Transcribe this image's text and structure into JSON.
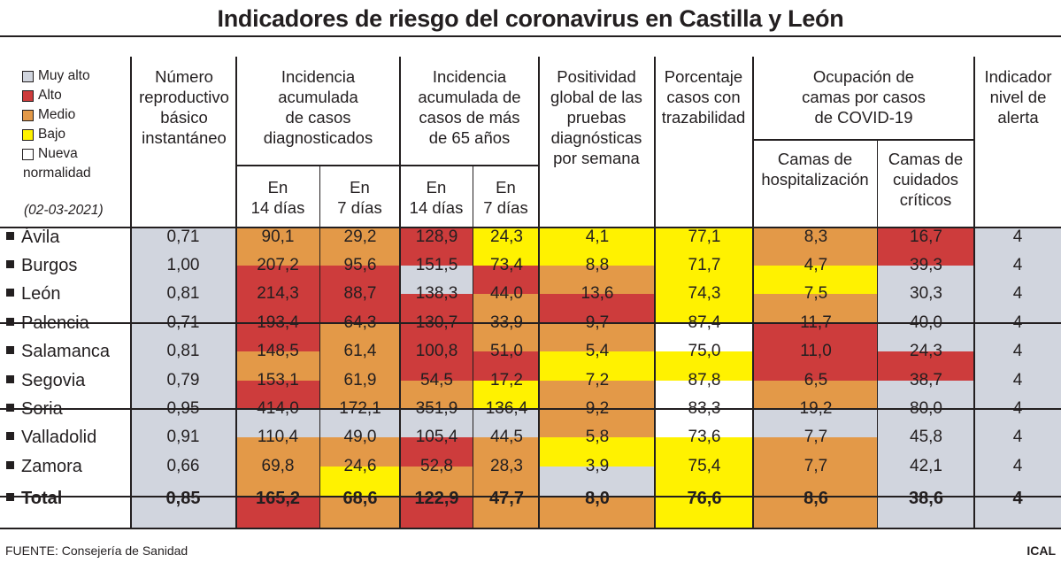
{
  "title": "Indicadores de riesgo del coronavirus en Castilla y León",
  "legend": {
    "items": [
      {
        "label": "Muy alto",
        "color": "#d1d5de"
      },
      {
        "label": "Alto",
        "color": "#cd3c3c"
      },
      {
        "label": "Medio",
        "color": "#e39948"
      },
      {
        "label": "Bajo",
        "color": "#fff200"
      },
      {
        "label": "Nueva",
        "color": "#ffffff"
      }
    ],
    "extra_line": "normalidad",
    "date": "(02-03-2021)"
  },
  "headers": {
    "reproductivo": [
      "Número",
      "reproductivo",
      "básico",
      "instantáneo"
    ],
    "incidencia": [
      "Incidencia",
      "acumulada",
      "de casos",
      "diagnosticados"
    ],
    "incidencia65": [
      "Incidencia",
      "acumulada de",
      "casos de más",
      "de 65 años"
    ],
    "positividad": [
      "Positividad",
      "global de las",
      "pruebas",
      "diagnósticas",
      "por semana"
    ],
    "trazabilidad": [
      "Porcentaje",
      "casos con",
      "trazabilidad"
    ],
    "ocupacion": [
      "Ocupación de",
      "camas por casos",
      "de COVID-19"
    ],
    "alerta": [
      "Indicador",
      "nivel de",
      "alerta"
    ],
    "sub_14": [
      "En",
      "14 días"
    ],
    "sub_7": [
      "En",
      "7 días"
    ],
    "sub_hosp": [
      "Camas de",
      "hospitalización"
    ],
    "sub_uci": [
      "Camas de",
      "cuidados",
      "críticos"
    ]
  },
  "chart_data": {
    "type": "table",
    "title": "Indicadores de riesgo del coronavirus en Castilla y León",
    "columns": [
      "Número reproductivo básico instantáneo",
      "Incidencia acumulada de casos diagnosticados - En 14 días",
      "Incidencia acumulada de casos diagnosticados - En 7 días",
      "Incidencia acumulada de casos de más de 65 años - En 14 días",
      "Incidencia acumulada de casos de más de 65 años - En 7 días",
      "Positividad global de las pruebas diagnósticas por semana",
      "Porcentaje casos con trazabilidad",
      "Ocupación de camas por casos de COVID-19 - Camas de hospitalización",
      "Ocupación de camas por casos de COVID-19 - Camas de cuidados críticos",
      "Indicador nivel de alerta"
    ],
    "level_colors": {
      "muy_alto": "#d1d5de",
      "alto": "#cd3c3c",
      "medio": "#e39948",
      "bajo": "#fff200",
      "nueva": "#ffffff"
    },
    "rows": [
      {
        "name": "Ávila",
        "values": [
          "0,71",
          "90,1",
          "29,2",
          "128,9",
          "24,3",
          "4,1",
          "77,1",
          "8,3",
          "16,7",
          "4"
        ],
        "levels": [
          "muy_alto",
          "medio",
          "medio",
          "alto",
          "bajo",
          "bajo",
          "bajo",
          "medio",
          "alto",
          "muy_alto"
        ]
      },
      {
        "name": "Burgos",
        "values": [
          "1,00",
          "207,2",
          "95,6",
          "151,5",
          "73,4",
          "8,8",
          "71,7",
          "4,7",
          "39,3",
          "4"
        ],
        "levels": [
          "muy_alto",
          "alto",
          "alto",
          "muy_alto",
          "alto",
          "medio",
          "bajo",
          "bajo",
          "muy_alto",
          "muy_alto"
        ]
      },
      {
        "name": "León",
        "values": [
          "0,81",
          "214,3",
          "88,7",
          "138,3",
          "44,0",
          "13,6",
          "74,3",
          "7,5",
          "30,3",
          "4"
        ],
        "levels": [
          "muy_alto",
          "alto",
          "alto",
          "alto",
          "medio",
          "alto",
          "bajo",
          "medio",
          "muy_alto",
          "muy_alto"
        ]
      },
      {
        "name": "Palencia",
        "values": [
          "0,71",
          "193,4",
          "64,3",
          "130,7",
          "33,9",
          "9,7",
          "87,4",
          "11,7",
          "40,0",
          "4"
        ],
        "levels": [
          "muy_alto",
          "alto",
          "medio",
          "alto",
          "medio",
          "medio",
          "nueva",
          "alto",
          "muy_alto",
          "muy_alto"
        ]
      },
      {
        "name": "Salamanca",
        "values": [
          "0,81",
          "148,5",
          "61,4",
          "100,8",
          "51,0",
          "5,4",
          "75,0",
          "11,0",
          "24,3",
          "4"
        ],
        "levels": [
          "muy_alto",
          "medio",
          "medio",
          "alto",
          "alto",
          "bajo",
          "bajo",
          "alto",
          "alto",
          "muy_alto"
        ]
      },
      {
        "name": "Segovia",
        "values": [
          "0,79",
          "153,1",
          "61,9",
          "54,5",
          "17,2",
          "7,2",
          "87,8",
          "6,5",
          "38,7",
          "4"
        ],
        "levels": [
          "muy_alto",
          "alto",
          "medio",
          "medio",
          "bajo",
          "medio",
          "nueva",
          "medio",
          "muy_alto",
          "muy_alto"
        ]
      },
      {
        "name": "Soria",
        "values": [
          "0,95",
          "414,0",
          "172,1",
          "351,9",
          "136,4",
          "9,2",
          "83,3",
          "19,2",
          "80,0",
          "4"
        ],
        "levels": [
          "muy_alto",
          "muy_alto",
          "muy_alto",
          "muy_alto",
          "muy_alto",
          "medio",
          "nueva",
          "muy_alto",
          "muy_alto",
          "muy_alto"
        ]
      },
      {
        "name": "Valladolid",
        "values": [
          "0,91",
          "110,4",
          "49,0",
          "105,4",
          "44,5",
          "5,8",
          "73,6",
          "7,7",
          "45,8",
          "4"
        ],
        "levels": [
          "muy_alto",
          "medio",
          "medio",
          "alto",
          "medio",
          "bajo",
          "bajo",
          "medio",
          "muy_alto",
          "muy_alto"
        ]
      },
      {
        "name": "Zamora",
        "values": [
          "0,66",
          "69,8",
          "24,6",
          "52,8",
          "28,3",
          "3,9",
          "75,4",
          "7,7",
          "42,1",
          "4"
        ],
        "levels": [
          "muy_alto",
          "medio",
          "bajo",
          "medio",
          "medio",
          "muy_alto",
          "bajo",
          "medio",
          "muy_alto",
          "muy_alto"
        ]
      },
      {
        "name": "Total",
        "values": [
          "0,85",
          "165,2",
          "68,6",
          "122,9",
          "47,7",
          "8,0",
          "76,6",
          "8,6",
          "38,6",
          "4"
        ],
        "levels": [
          "muy_alto",
          "alto",
          "medio",
          "alto",
          "medio",
          "medio",
          "bajo",
          "medio",
          "muy_alto",
          "muy_alto"
        ]
      }
    ]
  },
  "footer": {
    "source": "FUENTE: Consejería de Sanidad",
    "credit": "ICAL"
  }
}
